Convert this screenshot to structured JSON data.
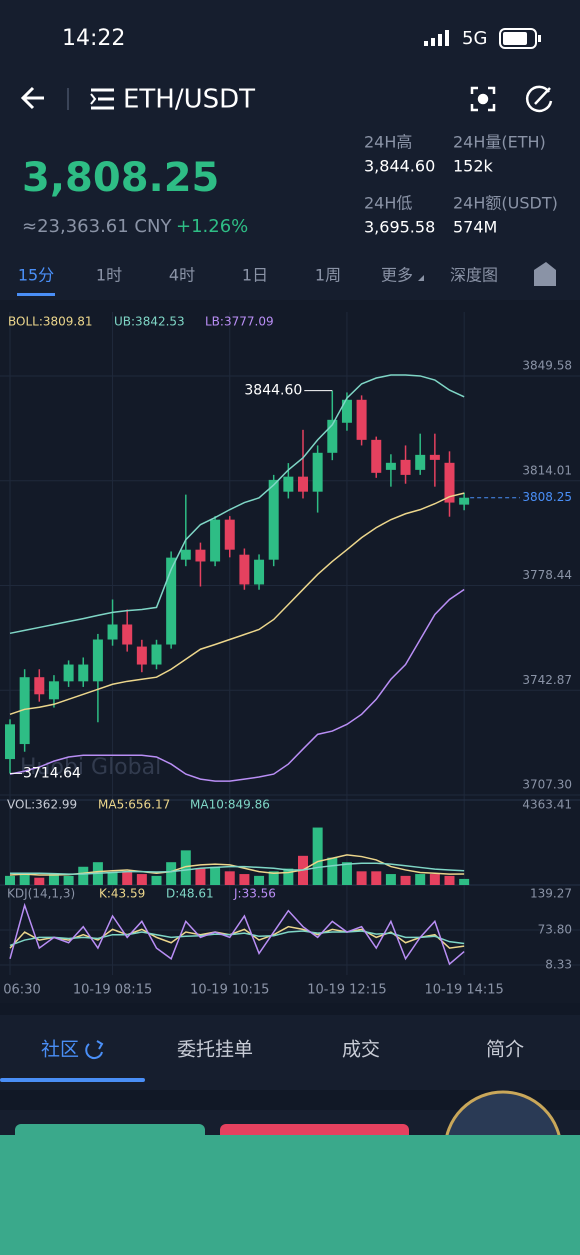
{
  "status_bar": {
    "time": "14:22",
    "network": "5G"
  },
  "header": {
    "pair": "ETH/USDT"
  },
  "ticker": {
    "price": "3,808.25",
    "cny": "≈23,363.61 CNY",
    "change": "+1.26%",
    "stats": [
      {
        "label": "24H高",
        "value": "3,844.60"
      },
      {
        "label": "24H量(ETH)",
        "value": "152k"
      },
      {
        "label": "24H低",
        "value": "3,695.58"
      },
      {
        "label": "24H额(USDT)",
        "value": "574M"
      }
    ]
  },
  "intervals": {
    "items": [
      "15分",
      "1时",
      "4时",
      "1日",
      "1周",
      "更多",
      "深度图"
    ],
    "active": 0
  },
  "chart_data": {
    "type": "candlestick",
    "categories": [
      "06:30",
      null,
      null,
      null,
      null,
      null,
      null,
      "10-19 08:15",
      null,
      null,
      null,
      null,
      null,
      null,
      null,
      "10-19 10:15",
      null,
      null,
      null,
      null,
      null,
      null,
      null,
      "10-19 12:15",
      null,
      null,
      null,
      null,
      null,
      null,
      null,
      "10-19 14:15"
    ],
    "open": [
      3719.5,
      3724.6,
      3747.3,
      3739.8,
      3745.9,
      3745.9,
      3745.9,
      3760.1,
      3765.2,
      3757.7,
      3751.6,
      3758.4,
      3787.2,
      3790.6,
      3786.6,
      3800.8,
      3788.9,
      3778.8,
      3787.2,
      3810.3,
      3815.4,
      3810.3,
      3823.5,
      3833.7,
      3841.5,
      3827.9,
      3817.7,
      3821.1,
      3817.7,
      3822.8,
      3820.1,
      3805.9
    ],
    "high": [
      3733,
      3750,
      3750,
      3748,
      3753,
      3754,
      3762,
      3773.7,
      3770.3,
      3760,
      3760,
      3790,
      3809.3,
      3793,
      3802,
      3802,
      3791,
      3789,
      3816,
      3820,
      3831.3,
      3826,
      3844.6,
      3844,
      3843,
      3829,
      3823,
      3826,
      3830,
      3830,
      3824,
      3810
    ],
    "low": [
      3714.64,
      3722,
      3739,
      3737,
      3744,
      3744,
      3732,
      3758,
      3756,
      3749,
      3750,
      3757,
      3785,
      3778.1,
      3785,
      3788,
      3777,
      3777,
      3785,
      3808,
      3808,
      3803.2,
      3821,
      3831,
      3826,
      3815,
      3812,
      3813,
      3816,
      3812,
      3801.8,
      3804
    ],
    "close": [
      3731.3,
      3747.3,
      3741.5,
      3745.9,
      3751.6,
      3751.6,
      3760.1,
      3765.2,
      3758.4,
      3751.6,
      3758.4,
      3787.9,
      3790.6,
      3786.6,
      3800.8,
      3790.6,
      3778.8,
      3787.2,
      3814.3,
      3815.4,
      3810.3,
      3823.5,
      3834.7,
      3841.5,
      3827.9,
      3816.7,
      3820.1,
      3816.0,
      3822.8,
      3821.1,
      3806.6,
      3808.25
    ],
    "up_color": "#2ebd85",
    "down_color": "#e5415f",
    "ylim": [
      3707.3,
      3849.58
    ],
    "yticks": [
      3849.58,
      3814.01,
      3778.44,
      3742.87,
      {
        "value": 3707.3,
        "label": "3707.30"
      }
    ],
    "overlays": [
      {
        "label": "BOLL:3809.81",
        "color": "#ecd68c",
        "values": [
          3734.7,
          3736.4,
          3737.1,
          3738.1,
          3739.8,
          3741.5,
          3743.2,
          3744.9,
          3745.9,
          3746.6,
          3747.3,
          3750.0,
          3753.4,
          3756.8,
          3758.4,
          3760.1,
          3761.8,
          3763.5,
          3766.9,
          3772.0,
          3777.1,
          3782.2,
          3786.6,
          3790.6,
          3794.7,
          3798.1,
          3800.8,
          3802.8,
          3804.2,
          3806.2,
          3808.6,
          3809.81
        ]
      },
      {
        "label": "UB:3842.53",
        "color": "#7fd6c6",
        "values": [
          3762.2,
          3763.2,
          3764.2,
          3765.2,
          3766.2,
          3767.2,
          3768.3,
          3769.3,
          3769.9,
          3770.3,
          3771.0,
          3783.9,
          3794.0,
          3799.1,
          3801.5,
          3804.2,
          3806.6,
          3808.2,
          3812.6,
          3817.7,
          3821.8,
          3827.9,
          3833.0,
          3842.1,
          3846.9,
          3848.9,
          3849.9,
          3849.9,
          3849.6,
          3848.2,
          3844.8,
          3842.53
        ]
      },
      {
        "label": "LB:3777.09",
        "color": "#b98ef5",
        "values": [
          3714.4,
          3715.4,
          3716.8,
          3718.8,
          3720.2,
          3720.8,
          3720.8,
          3720.8,
          3720.8,
          3720.8,
          3720.2,
          3717.8,
          3714.4,
          3712.7,
          3712.0,
          3712.0,
          3712.7,
          3713.4,
          3714.4,
          3717.8,
          3722.9,
          3727.9,
          3729.0,
          3731.3,
          3734.7,
          3739.8,
          3746.6,
          3751.6,
          3760.1,
          3768.6,
          3773.7,
          3777.09
        ]
      }
    ],
    "annotations": {
      "high_label": "3844.60",
      "low_label": "3714.64",
      "watermark": "Huobi Global"
    },
    "volume": {
      "label": "VOL:362.99",
      "ylim": [
        0,
        4363.41
      ],
      "yticks": [
        4363.41
      ],
      "values": [
        545,
        654,
        436,
        654,
        545,
        1090,
        1363,
        763,
        818,
        654,
        545,
        1363,
        2071,
        981,
        1090,
        818,
        654,
        545,
        818,
        981,
        1744,
        3434,
        1635,
        1363,
        818,
        818,
        654,
        545,
        654,
        654,
        545,
        362.99
      ],
      "ma": [
        {
          "label": "MA5:656.17",
          "color": "#ecd68c",
          "values": [
            600,
            650,
            600,
            600,
            620,
            700,
            800,
            850,
            900,
            800,
            700,
            800,
            1100,
            1200,
            1250,
            1200,
            1000,
            800,
            700,
            750,
            900,
            1400,
            1600,
            1800,
            1700,
            1500,
            1100,
            900,
            750,
            700,
            650,
            656.17
          ]
        },
        {
          "label": "MA10:849.86",
          "color": "#7fd6c6",
          "values": [
            700,
            700,
            700,
            680,
            650,
            660,
            700,
            750,
            800,
            800,
            780,
            800,
            900,
            1000,
            1050,
            1100,
            1100,
            1050,
            1000,
            900,
            900,
            1050,
            1150,
            1250,
            1300,
            1300,
            1250,
            1150,
            1050,
            950,
            900,
            849.86
          ]
        }
      ]
    },
    "kdj": {
      "label": "KDJ(14,1,3)",
      "ylim": [
        8.33,
        139.27
      ],
      "yticks": [
        139.27,
        {
          "value": 73.8,
          "label": "73.80"
        },
        8.33
      ],
      "series": [
        {
          "label": "K:43.59",
          "color": "#ecd68c",
          "values": [
            40,
            70,
            55,
            60,
            55,
            65,
            55,
            75,
            65,
            75,
            60,
            50,
            70,
            65,
            70,
            65,
            75,
            55,
            65,
            80,
            75,
            65,
            75,
            70,
            75,
            60,
            70,
            50,
            60,
            65,
            40,
            43.59
          ]
        },
        {
          "label": "D:48.61",
          "color": "#7fd6c6",
          "values": [
            45,
            55,
            60,
            60,
            58,
            60,
            58,
            65,
            65,
            70,
            65,
            60,
            62,
            63,
            66,
            65,
            68,
            62,
            63,
            70,
            72,
            68,
            70,
            70,
            72,
            66,
            68,
            60,
            60,
            62,
            52,
            48.61
          ]
        },
        {
          "label": "J:33.56",
          "color": "#b98ef5",
          "values": [
            20,
            120,
            40,
            60,
            50,
            80,
            40,
            100,
            60,
            90,
            40,
            20,
            90,
            60,
            70,
            60,
            100,
            30,
            70,
            110,
            80,
            60,
            90,
            70,
            80,
            40,
            90,
            20,
            60,
            90,
            10,
            33.56
          ]
        }
      ]
    }
  },
  "tabs": {
    "items": [
      "社区",
      "委托挂单",
      "成交",
      "简介"
    ],
    "active": 0
  }
}
